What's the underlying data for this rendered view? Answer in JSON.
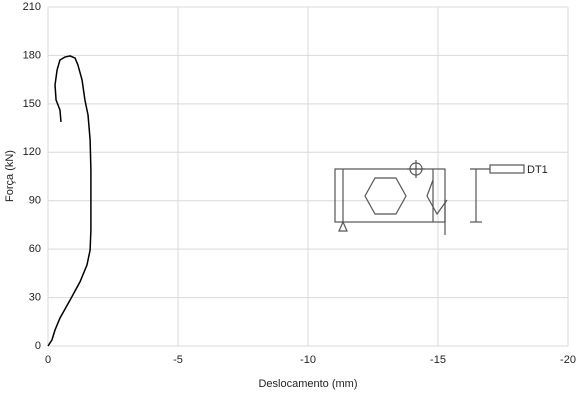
{
  "chart_data": {
    "type": "line",
    "x_label": "Deslocamento (mm)",
    "y_label": "Força (kN)",
    "x": [
      0,
      -0.15,
      -0.27,
      -0.46,
      -0.85,
      -1.23,
      -1.5,
      -1.62,
      -1.65,
      -1.65,
      -1.65,
      -1.62,
      -1.54,
      -1.42,
      -1.31,
      -1.15,
      -1.04,
      -0.85,
      -0.65,
      -0.46,
      -0.35,
      -0.27,
      -0.31,
      -0.46,
      -0.5
    ],
    "series": [
      {
        "name": "Força",
        "color": "#000000",
        "values": [
          0,
          3.7,
          9.9,
          17.3,
          28.5,
          39.7,
          50.2,
          59.5,
          71.9,
          90.5,
          109,
          127.6,
          143,
          152.4,
          164.8,
          174.1,
          178.4,
          179.7,
          179,
          177.2,
          171,
          161.7,
          152.4,
          146.2,
          138.8
        ]
      }
    ],
    "xlim": [
      0,
      -20
    ],
    "xticks": [
      0,
      -5,
      -10,
      -15,
      -20
    ],
    "ylim": [
      0,
      210
    ],
    "yticks": [
      0,
      30,
      60,
      90,
      120,
      150,
      180,
      210
    ],
    "grid": true,
    "inset_label": "DT1"
  }
}
